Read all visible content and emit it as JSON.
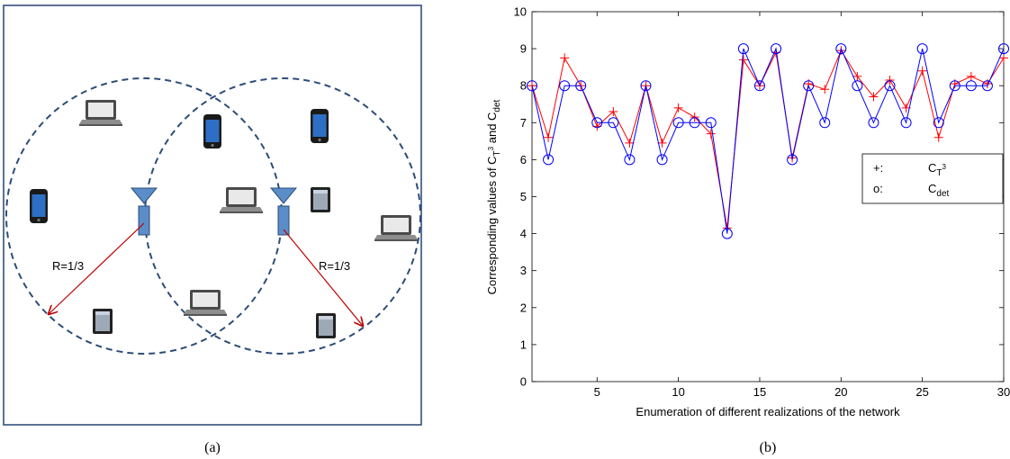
{
  "panel_a": {
    "caption": "(a)",
    "radius_labels": [
      "R=1/3",
      "R=1/3"
    ],
    "icons": [
      "laptop-icon",
      "smartphone-icon",
      "tablet-icon",
      "base-station-icon"
    ]
  },
  "panel_b": {
    "caption": "(b)"
  },
  "chart_data": {
    "type": "line",
    "xlabel": "Enumeration of different realizations of the network",
    "ylabel": "Corresponding values of C_{T^3} and C_{det}",
    "xlim": [
      1,
      30
    ],
    "ylim": [
      0,
      10
    ],
    "xticks": [
      5,
      10,
      15,
      20,
      25,
      30
    ],
    "yticks": [
      0,
      1,
      2,
      3,
      4,
      5,
      6,
      7,
      8,
      9,
      10
    ],
    "grid": false,
    "legend_position": "right",
    "x": [
      1,
      2,
      3,
      4,
      5,
      6,
      7,
      8,
      9,
      10,
      11,
      12,
      13,
      14,
      15,
      16,
      17,
      18,
      19,
      20,
      21,
      22,
      23,
      24,
      25,
      26,
      27,
      28,
      29,
      30
    ],
    "series": [
      {
        "name": "C_T3",
        "legend_marker": "+:",
        "legend_text": "C",
        "legend_sub": "T",
        "legend_sup": "3",
        "marker": "plus",
        "color": "#ff0000",
        "values": [
          8,
          6.6,
          8.75,
          8,
          6.9,
          7.3,
          6.45,
          8,
          6.45,
          7.4,
          7.15,
          6.7,
          4.15,
          8.7,
          8,
          8.9,
          6.05,
          8.05,
          7.9,
          8.95,
          8.25,
          7.7,
          8.15,
          7.4,
          8.4,
          6.6,
          8.05,
          8.25,
          8.05,
          8.75
        ]
      },
      {
        "name": "C_det",
        "legend_marker": "o:",
        "legend_text": "C",
        "legend_sub": "det",
        "marker": "circle",
        "color": "#0000ff",
        "values": [
          8,
          6,
          8,
          8,
          7,
          7,
          6,
          8,
          6,
          7,
          7,
          7,
          4,
          9,
          8,
          9,
          6,
          8,
          7,
          9,
          8,
          7,
          8,
          7,
          9,
          7,
          8,
          8,
          8,
          9
        ]
      }
    ]
  }
}
